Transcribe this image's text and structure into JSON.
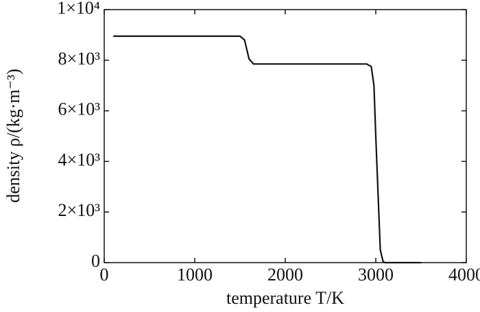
{
  "chart_data": {
    "type": "line",
    "x_label": "temperature T/K",
    "y_label": "density ρ/(kg·m⁻³)",
    "x": [
      100,
      1500,
      1550,
      1600,
      1650,
      2900,
      2950,
      2980,
      3000,
      3050,
      3080,
      3100,
      3500
    ],
    "series": [
      {
        "color": "#111111",
        "values": [
          8950,
          8950,
          8800,
          8050,
          7850,
          7850,
          7750,
          7000,
          5000,
          500,
          50,
          0,
          0
        ]
      }
    ],
    "xlim": [
      0,
      4000
    ],
    "xticks": [
      0,
      1000,
      2000,
      3000,
      4000
    ],
    "ylim": [
      0,
      10000
    ],
    "yticks": [
      0,
      {
        "value": 2000,
        "label": "2×10³"
      },
      {
        "value": 4000,
        "label": "4×10³"
      },
      {
        "value": 6000,
        "label": "6×10³"
      },
      {
        "value": 8000,
        "label": "8×10³"
      },
      {
        "value": 10000,
        "label": "1×10⁴"
      }
    ]
  }
}
